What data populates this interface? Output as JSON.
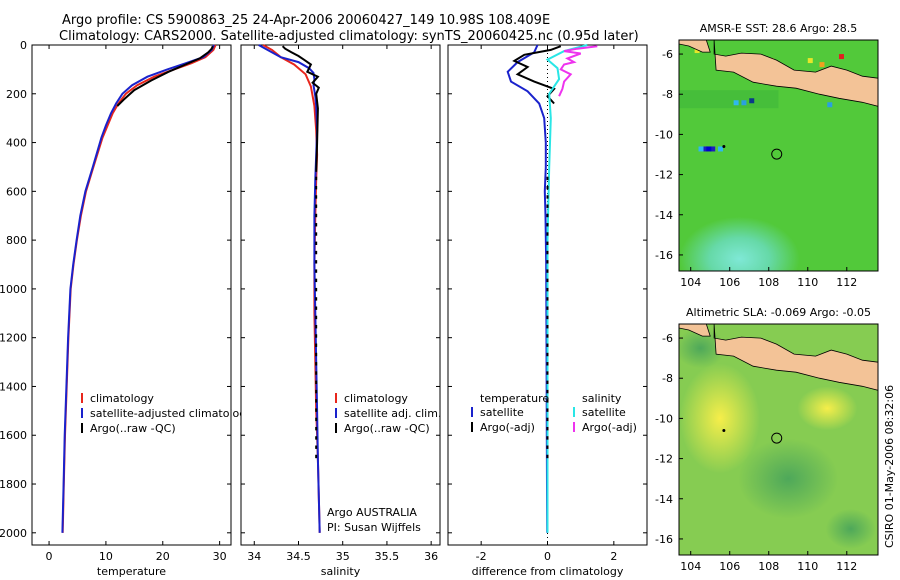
{
  "header": {
    "title_line1": "Argo profile: CS 5900863_25 24-Apr-2006 20060427_149 10.98S 108.409E",
    "title_line2": "Climatology: CARS2000. Satellite-adjusted climatology: synTS_20060425.nc (0.95d later)"
  },
  "footer": {
    "text": "CSIRO 01-May-2006 08:32:06"
  },
  "colors": {
    "climatology": "#e8261c",
    "satellite": "#1a22cc",
    "argo": "#000000",
    "sal_satellite": "#29e6e6",
    "sal_argo": "#ee33ee",
    "land": "#f3c397"
  },
  "chart_data": [
    {
      "type": "line",
      "xlabel": "temperature",
      "ylabel": "",
      "xlim": [
        -3,
        32
      ],
      "ylim": [
        2050,
        0
      ],
      "xticks": [
        0,
        10,
        20,
        30
      ],
      "yticks": [
        0,
        200,
        400,
        600,
        800,
        1000,
        1200,
        1400,
        1600,
        1800,
        2000
      ],
      "legend": [
        "climatology",
        "satellite-adjusted climatology",
        "Argo(..raw -QC)"
      ],
      "series": [
        {
          "name": "climatology",
          "color": "#e8261c",
          "x": [
            29.3,
            28.9,
            27.5,
            25.0,
            22.0,
            18.5,
            15.5,
            13.5,
            12.2,
            11.2,
            10.3,
            9.4,
            7.8,
            6.5,
            5.6,
            4.9,
            4.3,
            3.8,
            3.4,
            3.1,
            2.8,
            2.6,
            2.4
          ],
          "y": [
            0,
            20,
            50,
            75,
            100,
            130,
            165,
            200,
            240,
            280,
            330,
            380,
            500,
            600,
            700,
            800,
            900,
            1000,
            1200,
            1400,
            1600,
            1800,
            2000
          ]
        },
        {
          "name": "satellite-adjusted climatology",
          "color": "#1a22cc",
          "x": [
            29.0,
            28.6,
            27.1,
            24.0,
            20.8,
            17.3,
            14.6,
            12.9,
            11.8,
            10.9,
            10.0,
            9.2,
            7.7,
            6.4,
            5.5,
            4.85,
            4.25,
            3.75,
            3.35,
            3.05,
            2.75,
            2.55,
            2.35
          ],
          "y": [
            0,
            20,
            50,
            75,
            100,
            130,
            165,
            200,
            240,
            280,
            330,
            380,
            500,
            600,
            700,
            800,
            900,
            1000,
            1200,
            1400,
            1600,
            1800,
            2000
          ]
        },
        {
          "name": "Argo(..raw -QC)",
          "color": "#000000",
          "x": [
            28.8,
            28.6,
            28.0,
            26.5,
            24.0,
            21.0,
            18.0,
            15.0,
            13.3,
            12.0
          ],
          "y": [
            5,
            15,
            30,
            55,
            80,
            110,
            145,
            185,
            220,
            250
          ]
        }
      ]
    },
    {
      "type": "line",
      "xlabel": "salinity",
      "xlim": [
        33.85,
        36.1
      ],
      "ylim": [
        2050,
        0
      ],
      "xticks": [
        34,
        34.5,
        35,
        35.5,
        36
      ],
      "legend": [
        "climatology",
        "satellite adj. clim.",
        "Argo(..raw -QC)"
      ],
      "annotation": [
        "Argo AUSTRALIA",
        "PI: Susan Wijffels"
      ],
      "series": [
        {
          "name": "climatology",
          "color": "#e8261c",
          "x": [
            34.1,
            34.2,
            34.3,
            34.45,
            34.58,
            34.64,
            34.68,
            34.7,
            34.71,
            34.7,
            34.69,
            34.68,
            34.68,
            34.69,
            34.7,
            34.71,
            34.72,
            34.73,
            34.74
          ],
          "y": [
            0,
            20,
            50,
            80,
            120,
            170,
            250,
            350,
            450,
            550,
            700,
            900,
            1100,
            1300,
            1500,
            1600,
            1700,
            1850,
            2000
          ]
        },
        {
          "name": "satellite adj. clim.",
          "color": "#1a22cc",
          "x": [
            34.05,
            34.15,
            34.3,
            34.5,
            34.62,
            34.67,
            34.68,
            34.67,
            34.69,
            34.7,
            34.71,
            34.7,
            34.69,
            34.68,
            34.68,
            34.69,
            34.7,
            34.71,
            34.72,
            34.73,
            34.74
          ],
          "y": [
            0,
            20,
            50,
            70,
            95,
            115,
            140,
            165,
            210,
            250,
            350,
            450,
            550,
            700,
            900,
            1100,
            1300,
            1500,
            1700,
            1850,
            2000
          ]
        },
        {
          "name": "Argo(..raw -QC)",
          "color": "#000000",
          "x": [
            34.32,
            34.35,
            34.42,
            34.5,
            34.56,
            34.64,
            34.6,
            34.72,
            34.66,
            34.73,
            34.7,
            34.72,
            34.71,
            34.7
          ],
          "y": [
            5,
            15,
            30,
            45,
            60,
            80,
            110,
            130,
            155,
            175,
            200,
            260,
            400,
            520
          ],
          "y2_note": "continues as dashed ticks to 2000"
        }
      ]
    },
    {
      "type": "line",
      "xlabel": "difference from climatology",
      "xlim": [
        -3,
        3
      ],
      "ylim": [
        2050,
        0
      ],
      "xticks": [
        -2,
        0,
        2
      ],
      "legend_temperature_header": "temperature",
      "legend_salinity_header": "salinity",
      "legend": [
        "satellite",
        "Argo(-adj)",
        "satellite",
        "Argo(-adj)"
      ],
      "series": [
        {
          "name": "satellite",
          "group": "temperature",
          "color": "#1a22cc",
          "x": [
            -0.3,
            -0.4,
            -0.9,
            -1.2,
            -1.1,
            -0.6,
            -0.25,
            -0.1,
            -0.05,
            -0.05,
            -0.08,
            -0.06,
            -0.04,
            -0.03,
            -0.02,
            -0.01
          ],
          "y": [
            0,
            30,
            70,
            110,
            150,
            190,
            240,
            300,
            400,
            500,
            600,
            700,
            900,
            1200,
            1600,
            2000
          ]
        },
        {
          "name": "Argo(-adj)",
          "group": "temperature",
          "color": "#000000",
          "x": [
            0.4,
            0.1,
            -0.7,
            -1.0,
            -0.6,
            -0.9,
            -0.4,
            0.2,
            0.0,
            0.2
          ],
          "y": [
            5,
            20,
            40,
            65,
            90,
            120,
            150,
            180,
            210,
            240
          ]
        },
        {
          "name": "satellite",
          "group": "salinity",
          "color": "#29e6e6",
          "x": [
            1.2,
            0.5,
            0.0,
            0.3,
            0.35,
            0.05,
            0.1,
            0.05,
            0.0,
            0.0,
            0.0,
            0.0
          ],
          "y": [
            0,
            25,
            60,
            95,
            140,
            200,
            300,
            500,
            800,
            1200,
            1600,
            2000
          ]
        },
        {
          "name": "Argo(-adj)",
          "group": "salinity",
          "color": "#ee33ee",
          "x": [
            1.5,
            0.9,
            0.5,
            1.0,
            0.6,
            0.8,
            0.5,
            0.4,
            0.7,
            0.5,
            0.45,
            0.35
          ],
          "y": [
            5,
            15,
            25,
            35,
            55,
            70,
            80,
            100,
            120,
            150,
            180,
            210
          ]
        }
      ]
    },
    {
      "type": "heatmap",
      "title": "AMSR-E SST: 28.6 Argo: 28.5",
      "xlim": [
        103.4,
        113.6
      ],
      "ylim": [
        -16.8,
        -5.3
      ],
      "xticks": [
        104,
        106,
        108,
        110,
        112
      ],
      "yticks": [
        -6,
        -8,
        -10,
        -12,
        -14,
        -16
      ],
      "marker": {
        "lon": 108.409,
        "lat": -10.98
      }
    },
    {
      "type": "heatmap",
      "title": "Altimetric SLA: -0.069 Argo: -0.05",
      "xlim": [
        103.4,
        113.6
      ],
      "ylim": [
        -16.8,
        -5.3
      ],
      "xticks": [
        104,
        106,
        108,
        110,
        112
      ],
      "yticks": [
        -6,
        -8,
        -10,
        -12,
        -14,
        -16
      ],
      "marker": {
        "lon": 108.409,
        "lat": -10.98
      }
    }
  ]
}
